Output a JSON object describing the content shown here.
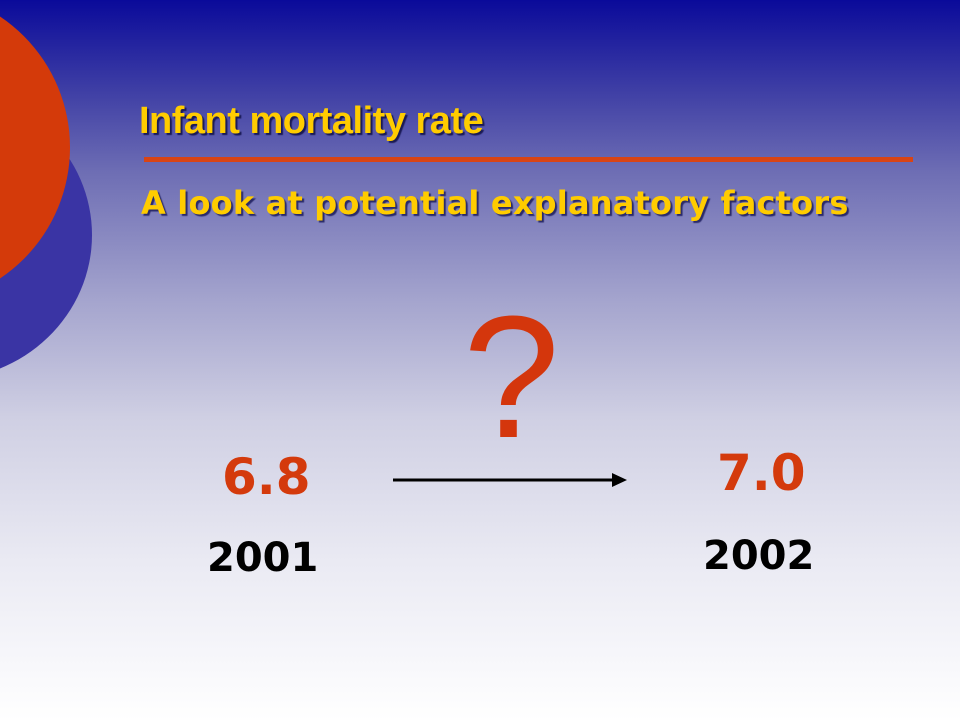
{
  "slide": {
    "title": "Infant mortality rate",
    "subtitle": "A look at potential explanatory factors",
    "question_mark": "?",
    "start": {
      "value": "6.8",
      "year": "2001"
    },
    "end": {
      "value": "7.0",
      "year": "2002"
    }
  },
  "colors": {
    "background_top": "#0a0a9a",
    "background_bottom": "#ffffff",
    "title_text": "#ffcc00",
    "title_rule": "#d84415",
    "accent_red": "#d4360c",
    "decor_circle_red": "#d43a0a",
    "decor_circle_blue": "#3a34a4",
    "year_text": "#000000",
    "arrow": "#000000"
  },
  "icons": {
    "arrow": "right-arrow-icon"
  }
}
